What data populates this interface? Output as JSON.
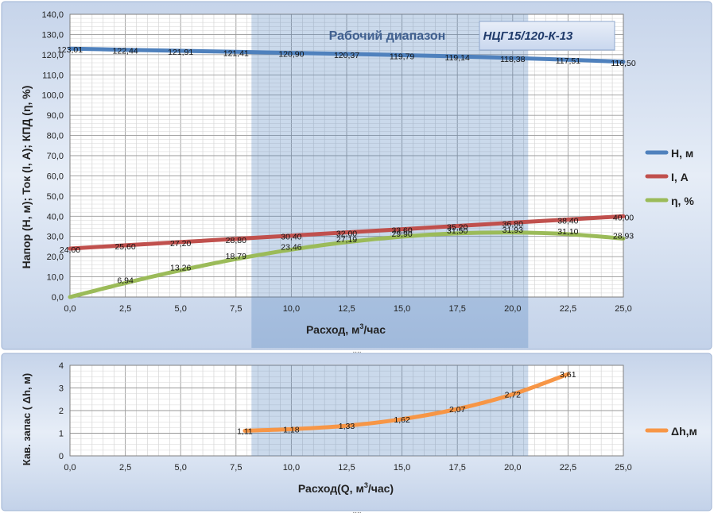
{
  "chart_data": [
    {
      "type": "line",
      "title": "",
      "band_label": "Рабочий диапазон",
      "model_label": "НЦГ15/120-К-13",
      "ylabel": "Напор (H, м); Ток (I, А); КПД (η, %)",
      "xlabel_prefix": "Расход, м",
      "xlabel_sup": "3",
      "xlabel_suffix": "/час",
      "xlim": [
        0,
        25
      ],
      "ylim": [
        0,
        140
      ],
      "x_ticks": [
        "0,0",
        "2,5",
        "5,0",
        "7,5",
        "10,0",
        "12,5",
        "15,0",
        "17,5",
        "20,0",
        "22,5",
        "25,0"
      ],
      "y_ticks": [
        "0,0",
        "10,0",
        "20,0",
        "30,0",
        "40,0",
        "50,0",
        "60,0",
        "70,0",
        "80,0",
        "90,0",
        "100,0",
        "110,0",
        "120,0",
        "130,0",
        "140,0"
      ],
      "working_range": [
        8.2,
        20.7
      ],
      "grid": true,
      "legend_position": "right",
      "series": [
        {
          "name": "H,  м",
          "color": "#4f81bd",
          "x": [
            0,
            2.5,
            5,
            7.5,
            10,
            12.5,
            15,
            17.5,
            20,
            22.5,
            25
          ],
          "values": [
            123.01,
            122.44,
            121.91,
            121.41,
            120.9,
            120.37,
            119.79,
            119.14,
            118.38,
            117.51,
            116.5
          ],
          "labels": [
            "123,01",
            "122,44",
            "121,91",
            "121,41",
            "120,90",
            "120,37",
            "119,79",
            "119,14",
            "118,38",
            "117,51",
            "116,50"
          ]
        },
        {
          "name": "I, А",
          "color": "#c0504d",
          "x": [
            0,
            2.5,
            5,
            7.5,
            10,
            12.5,
            15,
            17.5,
            20,
            22.5,
            25
          ],
          "values": [
            24.0,
            25.6,
            27.2,
            28.8,
            30.4,
            32.0,
            33.6,
            35.2,
            36.8,
            38.4,
            40.0
          ],
          "labels": [
            "24,00",
            "25,60",
            "27,20",
            "28,80",
            "30,40",
            "32,00",
            "33,60",
            "35,20",
            "36,80",
            "38,40",
            "40,00"
          ]
        },
        {
          "name": "η, %",
          "color": "#9bbb59",
          "x": [
            0,
            2.5,
            5,
            7.5,
            10,
            12.5,
            15,
            17.5,
            20,
            22.5,
            25
          ],
          "values": [
            0,
            6.94,
            13.26,
            18.79,
            23.46,
            27.19,
            29.9,
            31.5,
            31.93,
            31.1,
            28.93
          ],
          "labels": [
            "",
            "6,94",
            "13,26",
            "18,79",
            "23,46",
            "27,19",
            "29,90",
            "31,50",
            "31,93",
            "31,10",
            "28,93"
          ]
        }
      ]
    },
    {
      "type": "line",
      "title": "",
      "ylabel": "Кав. запас ( Δh, м)",
      "xlabel_prefix": "Расход(Q, м",
      "xlabel_sup": "3",
      "xlabel_suffix": "/час)",
      "xlim": [
        0,
        25
      ],
      "ylim": [
        0,
        4
      ],
      "x_ticks": [
        "0,0",
        "2,5",
        "5,0",
        "7,5",
        "10,0",
        "12,5",
        "15,0",
        "17,5",
        "20,0",
        "22,5",
        "25,0"
      ],
      "y_ticks": [
        "0",
        "1",
        "2",
        "3",
        "4"
      ],
      "grid": true,
      "legend_position": "right",
      "series": [
        {
          "name": "Δh,м",
          "color": "#f79646",
          "x": [
            7.9,
            10,
            12.5,
            15,
            17.5,
            20,
            22.5
          ],
          "values": [
            1.11,
            1.18,
            1.33,
            1.62,
            2.07,
            2.72,
            3.61
          ],
          "labels": [
            "1,11",
            "1,18",
            "1,33",
            "1,62",
            "2,07",
            "2,72",
            "3,61"
          ]
        }
      ]
    }
  ],
  "ui": {
    "top_handle": "....",
    "bottom_handle": "...."
  }
}
